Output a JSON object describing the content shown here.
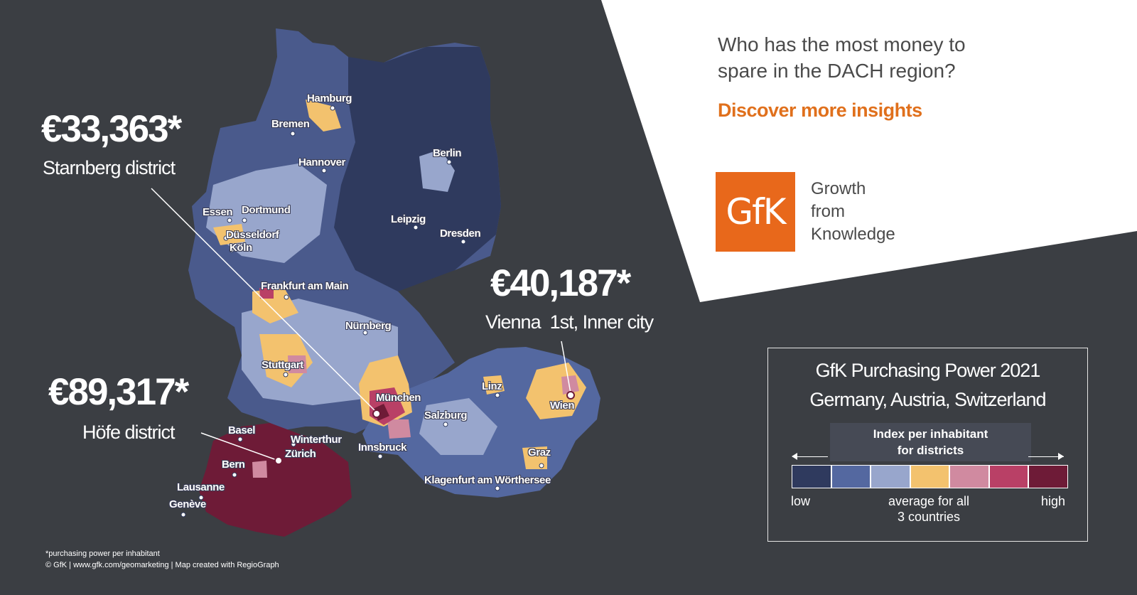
{
  "headline": {
    "line1": "Who has the most money to",
    "line2": "spare in the DACH region?"
  },
  "cta": "Discover more insights",
  "logo": {
    "text": "GfK",
    "tagline": [
      "Growth",
      "from",
      "Knowledge"
    ],
    "color": "#e8681b"
  },
  "callouts": {
    "starnberg": {
      "value": "€33,363*",
      "label": "Starnberg district"
    },
    "vienna": {
      "value": "€40,187*",
      "label": "Vienna  1st, Inner city"
    },
    "hofe": {
      "value": "€89,317*",
      "label": "Höfe district"
    }
  },
  "cities": {
    "hamburg": "Hamburg",
    "bremen": "Bremen",
    "berlin": "Berlin",
    "hannover": "Hannover",
    "essen": "Essen",
    "dortmund": "Dortmund",
    "duesseldorf": "Düsseldorf",
    "koeln": "Köln",
    "leipzig": "Leipzig",
    "dresden": "Dresden",
    "frankfurt": "Frankfurt am Main",
    "nuernberg": "Nürnberg",
    "stuttgart": "Stuttgart",
    "muenchen": "München",
    "linz": "Linz",
    "wien": "Wien",
    "salzburg": "Salzburg",
    "innsbruck": "Innsbruck",
    "graz": "Graz",
    "klagenfurt": "Klagenfurt am Wörthersee",
    "basel": "Basel",
    "winterthur": "Winterthur",
    "zuerich": "Zürich",
    "bern": "Bern",
    "lausanne": "Lausanne",
    "geneve": "Genève"
  },
  "legend": {
    "title_line1": "GfK Purchasing Power 2021",
    "title_line2": "Germany, Austria, Switzerland",
    "subtitle_line1": "Index per inhabitant",
    "subtitle_line2": "for districts",
    "low": "low",
    "avg_line1": "average for all",
    "avg_line2": "3 countries",
    "high": "high",
    "colors": [
      "#2f3a5e",
      "#5468a0",
      "#98a6cc",
      "#f3c26e",
      "#d08aa0",
      "#b94066",
      "#6e1b37"
    ]
  },
  "footnote": {
    "line1": "*purchasing power per inhabitant",
    "line2": "© GfK | www.gfk.com/geomarketing  | Map created  with RegioGraph"
  }
}
